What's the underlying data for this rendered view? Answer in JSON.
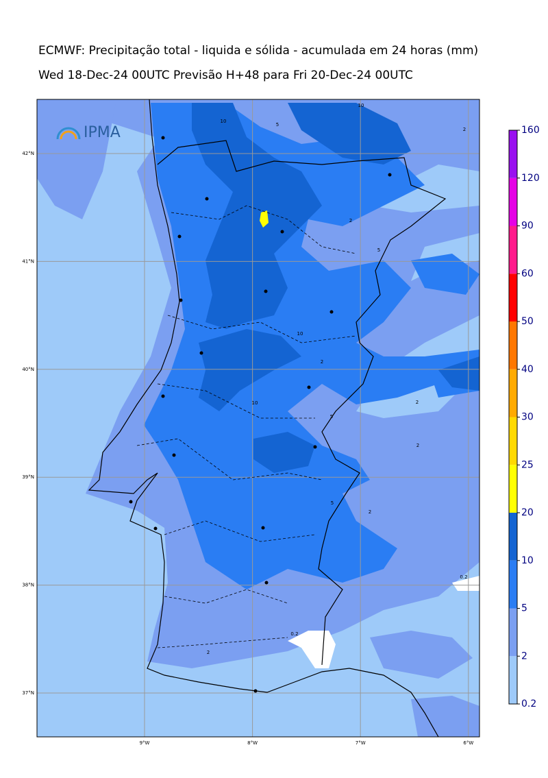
{
  "header": {
    "title": "ECMWF: Precipitação total - liquida e sólida - acumulada em 24 horas (mm)",
    "subtitle": "Wed 18-Dec-24 00UTC Previsão H+48 para Fri 20-Dec-24 00UTC"
  },
  "logo": {
    "text": "IPMA"
  },
  "map": {
    "lat_labels": [
      "42°N",
      "41°N",
      "40°N",
      "39°N",
      "38°N",
      "37°N"
    ],
    "lon_labels": [
      "9°W",
      "8°W",
      "7°W",
      "6°W"
    ],
    "contour_labels": [
      "10",
      "10",
      "5",
      "2",
      "2",
      "5",
      "10",
      "10",
      "5",
      "2",
      "2",
      "5",
      "2",
      "0.2",
      "0.2",
      "2",
      "2"
    ]
  },
  "colorbar": {
    "levels": [
      0.2,
      2,
      5,
      10,
      20,
      25,
      30,
      40,
      50,
      60,
      90,
      120,
      160
    ],
    "colors": [
      "#9ecaf9",
      "#7b9ff1",
      "#2a7df3",
      "#1464d2",
      "#ffff00",
      "#ffd900",
      "#ffaa00",
      "#ff7700",
      "#ff0000",
      "#ff1a8c",
      "#e600e6",
      "#9a10f0"
    ]
  }
}
